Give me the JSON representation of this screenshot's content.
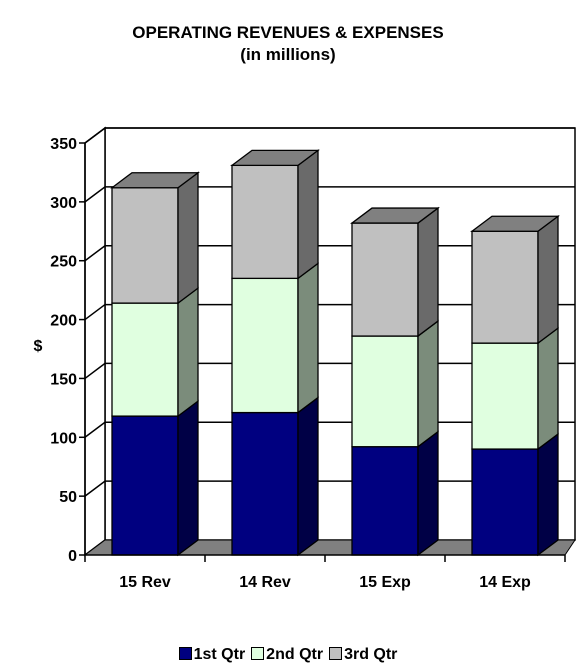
{
  "chart_data": {
    "type": "bar",
    "stacked": true,
    "three_d": true,
    "title": "OPERATING REVENUES & EXPENSES",
    "subtitle": "(in millions)",
    "ylabel": "$",
    "xlabel": "",
    "ylim": [
      0,
      350
    ],
    "yticks": [
      0,
      50,
      100,
      150,
      200,
      250,
      300,
      350
    ],
    "categories": [
      "15 Rev",
      "14 Rev",
      "15 Exp",
      "14 Exp"
    ],
    "series": [
      {
        "name": "1st Qtr",
        "color": "#000080",
        "values": [
          118,
          121,
          92,
          90
        ]
      },
      {
        "name": "2nd Qtr",
        "color": "#e0ffe0",
        "values": [
          96,
          114,
          94,
          90
        ]
      },
      {
        "name": "3rd Qtr",
        "color": "#c0c0c0",
        "values": [
          98,
          96,
          96,
          95
        ]
      }
    ],
    "legend_position": "bottom",
    "grid": false
  }
}
